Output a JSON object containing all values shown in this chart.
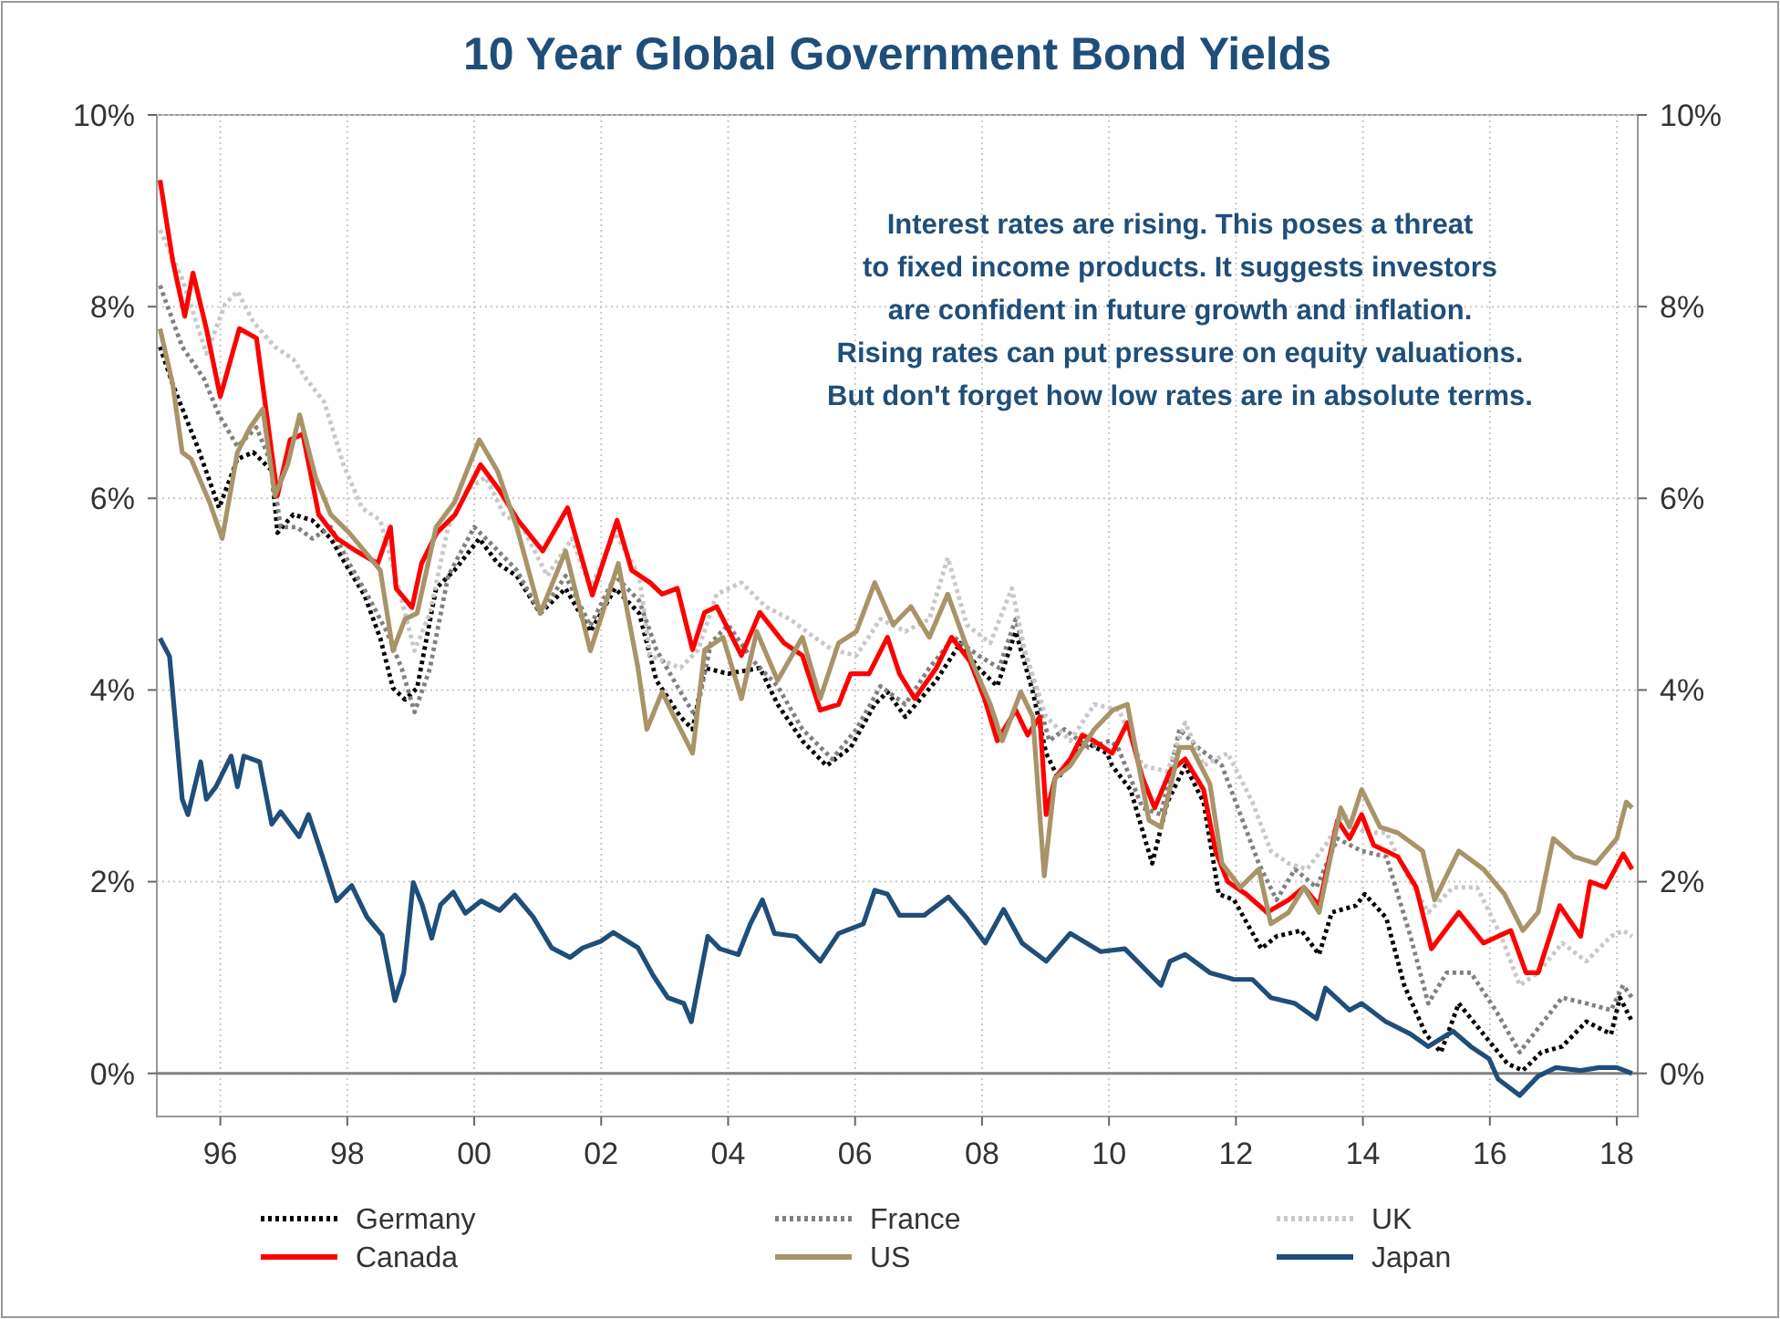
{
  "chart_data": {
    "type": "line",
    "title": "10 Year Global Government Bond Yields",
    "annotations": [
      "Interest rates are rising. This poses a threat",
      "to fixed income products.  It suggests investors",
      "are confident in future growth and inflation.",
      "Rising rates can put pressure on equity valuations.",
      "But don't forget how low rates are in absolute terms."
    ],
    "xlim": [
      1995,
      2018.33
    ],
    "xticks": [
      {
        "value": 1996,
        "label": "96"
      },
      {
        "value": 1998,
        "label": "98"
      },
      {
        "value": 2000,
        "label": "00"
      },
      {
        "value": 2002,
        "label": "02"
      },
      {
        "value": 2004,
        "label": "04"
      },
      {
        "value": 2006,
        "label": "06"
      },
      {
        "value": 2008,
        "label": "08"
      },
      {
        "value": 2010,
        "label": "10"
      },
      {
        "value": 2012,
        "label": "12"
      },
      {
        "value": 2014,
        "label": "14"
      },
      {
        "value": 2016,
        "label": "16"
      },
      {
        "value": 2018,
        "label": "18"
      }
    ],
    "ylim": [
      -0.45,
      10
    ],
    "yticks": [
      {
        "value": 0,
        "label": "0%"
      },
      {
        "value": 2,
        "label": "2%"
      },
      {
        "value": 4,
        "label": "4%"
      },
      {
        "value": 6,
        "label": "6%"
      },
      {
        "value": 8,
        "label": "8%"
      },
      {
        "value": 10,
        "label": "10%"
      }
    ],
    "y2lim": [
      -0.45,
      10
    ],
    "y2ticks": [
      {
        "value": 0,
        "label": "0%"
      },
      {
        "value": 2,
        "label": "2%"
      },
      {
        "value": 4,
        "label": "4%"
      },
      {
        "value": 6,
        "label": "6%"
      },
      {
        "value": 8,
        "label": "8%"
      },
      {
        "value": 10,
        "label": "10%"
      }
    ],
    "grid": true,
    "legend": "bottom",
    "ref_lines": [
      {
        "axis": "y",
        "value": 0,
        "color": "#808080"
      }
    ],
    "series": [
      {
        "name": "Germany",
        "color": "#000000",
        "line_style": "dotted",
        "x": [
          1995.05,
          1995.25,
          1995.44,
          1995.64,
          1995.98,
          1996.27,
          1996.52,
          1996.81,
          1996.9,
          1997.15,
          1997.45,
          1997.74,
          1998.03,
          1998.27,
          1998.52,
          1998.72,
          1998.91,
          1999.1,
          1999.4,
          1999.69,
          2000.08,
          2000.37,
          2000.67,
          2001.04,
          2001.44,
          2001.83,
          2002.22,
          2002.6,
          2002.87,
          2003.25,
          2003.44,
          2003.63,
          2004.0,
          2004.5,
          2004.78,
          2005.17,
          2005.55,
          2005.93,
          2006.31,
          2006.51,
          2006.79,
          2007.28,
          2007.66,
          2007.94,
          2008.24,
          2008.53,
          2008.8,
          2009.01,
          2009.2,
          2009.58,
          2009.97,
          2010.05,
          2010.34,
          2010.68,
          2010.92,
          2011.2,
          2011.49,
          2011.73,
          2011.97,
          2012.4,
          2012.64,
          2013.03,
          2013.31,
          2013.51,
          2013.89,
          2014.03,
          2014.37,
          2014.65,
          2014.99,
          2015.23,
          2015.51,
          2015.9,
          2016.28,
          2016.52,
          2016.81,
          2017.14,
          2017.52,
          2017.91,
          2018.05,
          2018.24
        ],
        "values": [
          7.58,
          7.19,
          6.87,
          6.54,
          5.9,
          6.41,
          6.48,
          6.29,
          5.64,
          5.83,
          5.77,
          5.58,
          5.25,
          4.99,
          4.54,
          4.02,
          3.9,
          4.02,
          5.06,
          5.25,
          5.58,
          5.32,
          5.19,
          4.8,
          5.06,
          4.61,
          5.06,
          4.8,
          4.1,
          3.72,
          3.59,
          4.23,
          4.17,
          4.23,
          3.85,
          3.47,
          3.21,
          3.4,
          3.85,
          3.98,
          3.72,
          4.1,
          4.49,
          4.23,
          4.04,
          4.61,
          3.98,
          3.34,
          3.08,
          3.47,
          3.34,
          3.21,
          2.96,
          2.19,
          2.83,
          3.21,
          2.83,
          1.87,
          1.81,
          1.3,
          1.43,
          1.49,
          1.24,
          1.68,
          1.75,
          1.87,
          1.62,
          0.92,
          0.41,
          0.22,
          0.73,
          0.41,
          0.1,
          0.03,
          0.22,
          0.28,
          0.54,
          0.41,
          0.79,
          0.54
        ]
      },
      {
        "name": "France",
        "color": "#808080",
        "line_style": "dotted",
        "x": [
          1995.05,
          1995.4,
          1995.74,
          1995.98,
          1996.27,
          1996.57,
          1996.81,
          1996.95,
          1997.2,
          1997.45,
          1997.74,
          1998.03,
          1998.32,
          1998.62,
          1998.86,
          1999.06,
          1999.3,
          1999.59,
          2000.0,
          2000.29,
          2000.67,
          2001.04,
          2001.44,
          2001.83,
          2002.22,
          2002.6,
          2002.87,
          2003.25,
          2003.49,
          2003.73,
          2004.0,
          2004.4,
          2004.78,
          2005.17,
          2005.64,
          2006.02,
          2006.4,
          2006.79,
          2007.17,
          2007.56,
          2007.94,
          2008.27,
          2008.53,
          2008.8,
          2009.06,
          2009.3,
          2009.68,
          2010.02,
          2010.14,
          2010.53,
          2010.82,
          2011.11,
          2011.4,
          2011.78,
          2012.07,
          2012.36,
          2012.64,
          2012.93,
          2013.27,
          2013.6,
          2013.98,
          2014.37,
          2014.75,
          2015.03,
          2015.32,
          2015.7,
          2016.09,
          2016.47,
          2016.76,
          2017.14,
          2017.52,
          2017.91,
          2018.1,
          2018.24
        ],
        "values": [
          8.22,
          7.58,
          7.25,
          6.87,
          6.54,
          6.74,
          6.35,
          5.7,
          5.7,
          5.58,
          5.7,
          5.32,
          4.99,
          4.61,
          4.22,
          3.77,
          4.22,
          5.19,
          5.7,
          5.51,
          5.25,
          4.8,
          5.19,
          4.67,
          5.19,
          4.93,
          4.42,
          3.98,
          3.72,
          4.49,
          4.68,
          4.3,
          4.04,
          3.59,
          3.28,
          3.59,
          4.04,
          3.85,
          4.23,
          4.55,
          4.36,
          4.23,
          4.74,
          4.1,
          3.47,
          3.59,
          3.4,
          3.47,
          3.4,
          2.77,
          2.7,
          3.59,
          3.4,
          3.21,
          2.7,
          2.19,
          1.81,
          2.13,
          1.94,
          2.45,
          2.32,
          2.26,
          1.43,
          0.73,
          1.05,
          1.05,
          0.66,
          0.22,
          0.47,
          0.79,
          0.73,
          0.66,
          0.92,
          0.79
        ]
      },
      {
        "name": "UK",
        "color": "#c8c8c8",
        "line_style": "dotted",
        "x": [
          1995.05,
          1995.4,
          1995.78,
          1996.08,
          1996.27,
          1996.52,
          1996.86,
          1997.15,
          1997.35,
          1997.64,
          1997.94,
          1998.23,
          1998.52,
          1998.81,
          1999.06,
          1999.3,
          1999.59,
          1999.89,
          2000.18,
          2000.47,
          2000.76,
          2001.15,
          2001.54,
          2001.83,
          2002.22,
          2002.6,
          2002.77,
          2003.25,
          2003.53,
          2003.82,
          2004.21,
          2004.59,
          2004.97,
          2005.36,
          2005.64,
          2006.02,
          2006.4,
          2006.79,
          2007.17,
          2007.46,
          2007.76,
          2008.13,
          2008.47,
          2008.67,
          2009.01,
          2009.39,
          2009.77,
          2010.16,
          2010.53,
          2010.92,
          2011.2,
          2011.49,
          2011.87,
          2012.26,
          2012.55,
          2012.83,
          2013.12,
          2013.41,
          2013.7,
          2014.03,
          2014.37,
          2014.75,
          2015.03,
          2015.42,
          2015.8,
          2016.18,
          2016.47,
          2016.76,
          2017.14,
          2017.52,
          2017.91,
          2018.1,
          2018.24
        ],
        "values": [
          8.8,
          8.29,
          7.51,
          8.03,
          8.16,
          7.84,
          7.58,
          7.45,
          7.25,
          7.0,
          6.35,
          5.9,
          5.77,
          5.06,
          4.41,
          4.8,
          5.7,
          6.09,
          6.22,
          5.83,
          5.7,
          5.19,
          5.58,
          5.06,
          5.64,
          5.19,
          4.36,
          4.23,
          4.42,
          5.0,
          5.12,
          4.87,
          4.74,
          4.55,
          4.42,
          4.36,
          4.74,
          4.61,
          4.74,
          5.38,
          4.68,
          4.49,
          5.06,
          4.42,
          3.72,
          3.47,
          3.85,
          3.79,
          3.21,
          3.15,
          3.66,
          3.21,
          3.34,
          2.83,
          2.32,
          2.19,
          2.13,
          2.38,
          2.7,
          2.51,
          2.51,
          2.0,
          1.68,
          1.94,
          1.94,
          1.43,
          0.92,
          1.05,
          1.36,
          1.17,
          1.43,
          1.49,
          1.43
        ]
      },
      {
        "name": "Canada",
        "color": "#ff0000",
        "line_style": "solid",
        "x": [
          1995.05,
          1995.25,
          1995.44,
          1995.57,
          1995.78,
          1996.0,
          1996.3,
          1996.57,
          1996.9,
          1997.1,
          1997.3,
          1997.55,
          1997.84,
          1998.14,
          1998.48,
          1998.68,
          1998.77,
          1999.02,
          1999.17,
          1999.41,
          1999.7,
          2000.1,
          2000.39,
          2000.69,
          2001.08,
          2001.47,
          2001.86,
          2002.25,
          2002.48,
          2002.77,
          2002.96,
          2003.2,
          2003.44,
          2003.63,
          2003.82,
          2004.21,
          2004.5,
          2004.88,
          2005.17,
          2005.45,
          2005.74,
          2005.93,
          2006.22,
          2006.51,
          2006.7,
          2006.94,
          2007.28,
          2007.52,
          2007.81,
          2008.04,
          2008.24,
          2008.53,
          2008.72,
          2008.91,
          2009.01,
          2009.15,
          2009.39,
          2009.58,
          2009.76,
          2010.05,
          2010.29,
          2010.53,
          2010.72,
          2010.96,
          2011.2,
          2011.49,
          2011.68,
          2011.87,
          2012.16,
          2012.49,
          2012.83,
          2013.07,
          2013.31,
          2013.6,
          2013.79,
          2013.98,
          2014.17,
          2014.55,
          2014.84,
          2015.08,
          2015.51,
          2015.9,
          2016.33,
          2016.57,
          2016.76,
          2017.1,
          2017.43,
          2017.58,
          2017.82,
          2018.1,
          2018.24
        ],
        "values": [
          9.32,
          8.48,
          7.9,
          8.35,
          7.77,
          7.06,
          7.77,
          7.67,
          6.03,
          6.61,
          6.67,
          5.83,
          5.58,
          5.45,
          5.32,
          5.7,
          5.06,
          4.86,
          5.32,
          5.64,
          5.83,
          6.35,
          6.09,
          5.77,
          5.45,
          5.9,
          4.99,
          5.77,
          5.25,
          5.12,
          5.0,
          5.06,
          4.42,
          4.81,
          4.87,
          4.36,
          4.81,
          4.49,
          4.36,
          3.79,
          3.85,
          4.17,
          4.17,
          4.55,
          4.17,
          3.91,
          4.23,
          4.55,
          4.3,
          3.91,
          3.47,
          3.79,
          3.53,
          3.72,
          2.7,
          3.08,
          3.28,
          3.53,
          3.47,
          3.34,
          3.66,
          3.08,
          2.77,
          3.15,
          3.28,
          2.96,
          2.32,
          2.0,
          1.87,
          1.68,
          1.81,
          1.94,
          1.75,
          2.64,
          2.45,
          2.7,
          2.38,
          2.26,
          1.94,
          1.3,
          1.68,
          1.36,
          1.49,
          1.05,
          1.05,
          1.75,
          1.43,
          2.0,
          1.94,
          2.29,
          2.13
        ]
      },
      {
        "name": "US",
        "color": "#a89469",
        "line_style": "solid",
        "x": [
          1995.05,
          1995.25,
          1995.4,
          1995.54,
          1995.83,
          1996.03,
          1996.27,
          1996.47,
          1996.67,
          1996.86,
          1997.06,
          1997.25,
          1997.5,
          1997.74,
          1998.03,
          1998.27,
          1998.52,
          1998.72,
          1998.91,
          1999.1,
          1999.4,
          1999.69,
          2000.08,
          2000.37,
          2000.67,
          2001.04,
          2001.44,
          2001.83,
          2002.27,
          2002.58,
          2002.72,
          2002.96,
          2003.15,
          2003.44,
          2003.63,
          2003.92,
          2004.21,
          2004.45,
          2004.78,
          2005.17,
          2005.45,
          2005.74,
          2006.02,
          2006.31,
          2006.6,
          2006.88,
          2007.17,
          2007.46,
          2007.84,
          2008.13,
          2008.32,
          2008.61,
          2008.8,
          2008.98,
          2009.15,
          2009.39,
          2009.77,
          2010.06,
          2010.29,
          2010.63,
          2010.82,
          2011.11,
          2011.3,
          2011.59,
          2011.78,
          2012.07,
          2012.36,
          2012.55,
          2012.83,
          2013.07,
          2013.31,
          2013.65,
          2013.79,
          2013.98,
          2014.27,
          2014.55,
          2014.94,
          2015.13,
          2015.51,
          2015.9,
          2016.23,
          2016.52,
          2016.76,
          2017.0,
          2017.33,
          2017.67,
          2018.0,
          2018.15,
          2018.24
        ],
        "values": [
          7.77,
          7.19,
          6.48,
          6.41,
          5.96,
          5.58,
          6.48,
          6.74,
          6.93,
          6.03,
          6.35,
          6.87,
          6.22,
          5.83,
          5.64,
          5.45,
          5.25,
          4.41,
          4.74,
          4.8,
          5.7,
          5.96,
          6.61,
          6.28,
          5.7,
          4.8,
          5.45,
          4.41,
          5.32,
          4.23,
          3.59,
          3.98,
          3.72,
          3.34,
          4.42,
          4.55,
          3.91,
          4.61,
          4.1,
          4.55,
          3.91,
          4.49,
          4.61,
          5.12,
          4.68,
          4.87,
          4.55,
          5.0,
          4.3,
          3.85,
          3.47,
          3.98,
          3.72,
          2.06,
          3.08,
          3.21,
          3.59,
          3.79,
          3.85,
          2.64,
          2.57,
          3.4,
          3.4,
          3.02,
          2.19,
          1.94,
          2.13,
          1.56,
          1.68,
          1.94,
          1.68,
          2.77,
          2.57,
          2.96,
          2.57,
          2.51,
          2.32,
          1.81,
          2.32,
          2.13,
          1.87,
          1.49,
          1.68,
          2.45,
          2.26,
          2.19,
          2.45,
          2.83,
          2.77
        ]
      },
      {
        "name": "Japan",
        "color": "#1f4e79",
        "line_style": "solid",
        "x": [
          1995.05,
          1995.2,
          1995.4,
          1995.49,
          1995.69,
          1995.78,
          1995.93,
          1996.17,
          1996.27,
          1996.37,
          1996.62,
          1996.81,
          1996.95,
          1997.24,
          1997.39,
          1997.63,
          1997.83,
          1998.07,
          1998.31,
          1998.55,
          1998.75,
          1998.89,
          1999.04,
          1999.18,
          1999.33,
          1999.47,
          1999.67,
          1999.86,
          2000.11,
          2000.4,
          2000.64,
          2000.93,
          2001.22,
          2001.51,
          2001.71,
          2002.0,
          2002.19,
          2002.58,
          2002.82,
          2003.05,
          2003.3,
          2003.42,
          2003.53,
          2003.68,
          2003.87,
          2004.16,
          2004.35,
          2004.54,
          2004.73,
          2005.07,
          2005.45,
          2005.74,
          2006.13,
          2006.31,
          2006.51,
          2006.7,
          2007.09,
          2007.47,
          2007.76,
          2008.05,
          2008.34,
          2008.63,
          2009.01,
          2009.39,
          2009.87,
          2010.25,
          2010.82,
          2010.96,
          2011.2,
          2011.59,
          2011.97,
          2012.26,
          2012.55,
          2012.93,
          2013.27,
          2013.41,
          2013.79,
          2013.98,
          2014.36,
          2014.75,
          2015.03,
          2015.42,
          2015.7,
          2015.99,
          2016.13,
          2016.47,
          2016.76,
          2017.04,
          2017.43,
          2017.72,
          2018.0,
          2018.24
        ],
        "values": [
          4.54,
          4.35,
          2.86,
          2.7,
          3.25,
          2.86,
          2.99,
          3.31,
          2.99,
          3.31,
          3.25,
          2.6,
          2.73,
          2.47,
          2.7,
          2.22,
          1.8,
          1.96,
          1.63,
          1.44,
          0.76,
          1.05,
          1.99,
          1.76,
          1.41,
          1.76,
          1.89,
          1.67,
          1.8,
          1.7,
          1.86,
          1.63,
          1.31,
          1.21,
          1.31,
          1.38,
          1.47,
          1.31,
          1.02,
          0.79,
          0.73,
          0.54,
          0.92,
          1.43,
          1.3,
          1.24,
          1.56,
          1.81,
          1.46,
          1.43,
          1.17,
          1.46,
          1.56,
          1.91,
          1.87,
          1.65,
          1.65,
          1.84,
          1.62,
          1.36,
          1.71,
          1.36,
          1.17,
          1.46,
          1.27,
          1.3,
          0.92,
          1.17,
          1.24,
          1.05,
          0.98,
          0.98,
          0.79,
          0.73,
          0.57,
          0.89,
          0.66,
          0.73,
          0.54,
          0.41,
          0.28,
          0.44,
          0.28,
          0.15,
          -0.06,
          -0.23,
          -0.03,
          0.06,
          0.03,
          0.06,
          0.06,
          0.0
        ]
      }
    ]
  }
}
